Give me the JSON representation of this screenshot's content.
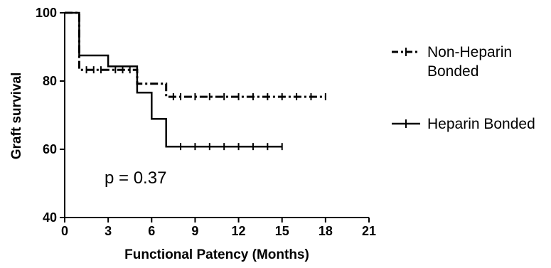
{
  "chart_data": {
    "type": "line",
    "step": true,
    "title": "",
    "xlabel": "Functional Patency (Months)",
    "ylabel": "Graft survival",
    "xlim": [
      0,
      21
    ],
    "ylim": [
      40,
      100
    ],
    "xticks": [
      0,
      3,
      6,
      9,
      12,
      15,
      18,
      21
    ],
    "yticks": [
      40,
      60,
      80,
      100
    ],
    "grid": false,
    "legend_position": "right",
    "annotation": "p = 0.37",
    "series": [
      {
        "name": "Non-Heparin Bonded",
        "style": "dash-dot",
        "color": "#000000",
        "points": [
          [
            0,
            100
          ],
          [
            1,
            100
          ],
          [
            1,
            83.3
          ],
          [
            3,
            83.3
          ],
          [
            5,
            83.3
          ],
          [
            5,
            79.2
          ],
          [
            7,
            79.2
          ],
          [
            7,
            75.4
          ],
          [
            18,
            75.4
          ]
        ],
        "censored_x": [
          1.5,
          2,
          2.5,
          3.5,
          4,
          4.5,
          7.5,
          8,
          9,
          10,
          11,
          12,
          13,
          14,
          15,
          16,
          17,
          18
        ]
      },
      {
        "name": "Heparin Bonded",
        "style": "solid",
        "color": "#000000",
        "points": [
          [
            0,
            100
          ],
          [
            1,
            100
          ],
          [
            1,
            87.5
          ],
          [
            3,
            87.5
          ],
          [
            3,
            84.3
          ],
          [
            5,
            84.3
          ],
          [
            5,
            76.6
          ],
          [
            6,
            76.6
          ],
          [
            6,
            68.9
          ],
          [
            7,
            68.9
          ],
          [
            7,
            60.8
          ],
          [
            15,
            60.8
          ]
        ],
        "censored_x": [
          8,
          9,
          10,
          11,
          12,
          13,
          14,
          15
        ]
      }
    ]
  }
}
